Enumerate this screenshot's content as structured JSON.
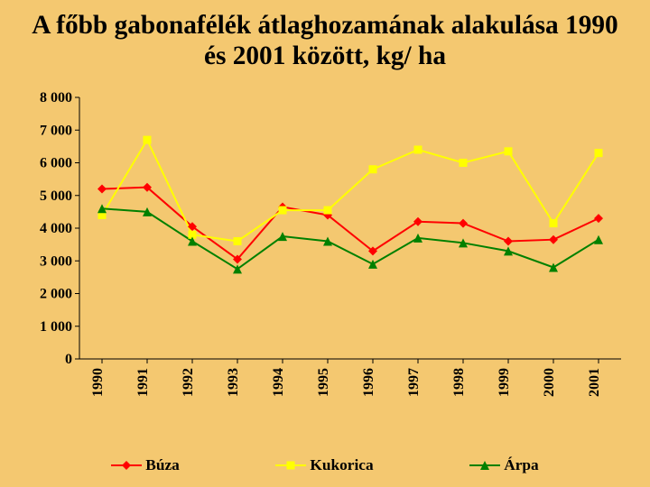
{
  "slide": {
    "background_color": "#f4c870",
    "title": {
      "text": "A főbb gabonafélék átlaghozamának alakulása  1990\nés 2001 között, kg/ ha",
      "font_size_pt": 22,
      "color": "#000000",
      "weight": "bold"
    }
  },
  "chart": {
    "type": "line",
    "plot_background": "transparent",
    "axis_line_color": "#000000",
    "axis_line_width": 1,
    "tick_mark_length": 5,
    "x_categories": [
      "1990",
      "1991",
      "1992",
      "1993",
      "1994",
      "1995",
      "1996",
      "1997",
      "1998",
      "1999",
      "2000",
      "2001"
    ],
    "x_label_font_size_pt": 12,
    "x_label_weight": "bold",
    "x_label_rotation_deg": -90,
    "x_label_color": "#000000",
    "ylim": [
      0,
      8000
    ],
    "ytick_step": 1000,
    "ytick_labels": [
      "0",
      "1 000",
      "2 000",
      "3 000",
      "4 000",
      "5 000",
      "6 000",
      "7 000",
      "8 000"
    ],
    "y_label_font_size_pt": 12,
    "y_label_weight": "bold",
    "y_label_color": "#000000",
    "grid": false,
    "series": [
      {
        "name": "Búza",
        "color": "#ff0000",
        "line_width": 2,
        "marker_shape": "diamond",
        "marker_size": 10,
        "values": [
          5200,
          5250,
          4050,
          3050,
          4650,
          4400,
          3300,
          4200,
          4150,
          3600,
          3650,
          4300
        ]
      },
      {
        "name": "Kukorica",
        "color": "#ffff00",
        "line_width": 2,
        "marker_shape": "square",
        "marker_size": 9,
        "values": [
          4400,
          6700,
          3800,
          3600,
          4550,
          4550,
          5800,
          6400,
          6000,
          6350,
          4150,
          6300
        ]
      },
      {
        "name": "Árpa",
        "color": "#008000",
        "line_width": 2,
        "marker_shape": "triangle",
        "marker_size": 10,
        "values": [
          4600,
          4500,
          3600,
          2750,
          3750,
          3600,
          2900,
          3700,
          3550,
          3300,
          2800,
          3650
        ]
      }
    ],
    "legend": {
      "font_size_pt": 13,
      "font_weight": "bold",
      "line_sample_length": 34
    }
  }
}
